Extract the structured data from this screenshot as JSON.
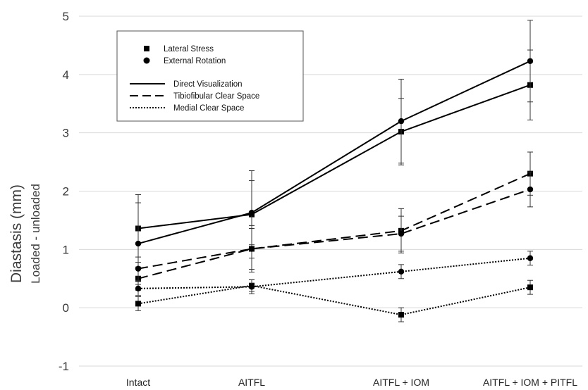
{
  "chart_data": {
    "type": "line",
    "ylabel": "Diastasis (mm)",
    "ylabel_sub": "Loaded - unloaded",
    "xlabel": "",
    "ylim": [
      -1,
      5
    ],
    "yticks": [
      -1,
      0,
      1,
      2,
      3,
      4,
      5
    ],
    "categories": [
      "Intact",
      "AITFL",
      "AITFL + IOM",
      "AITFL + IOM + PITFL"
    ],
    "grid": "horizontal",
    "legend": {
      "placement": "top-left",
      "markers": [
        {
          "label": "Lateral Stress",
          "marker": "square"
        },
        {
          "label": "External Rotation",
          "marker": "circle"
        }
      ],
      "lines": [
        {
          "label": "Direct Visualization",
          "style": "solid"
        },
        {
          "label": "Tibiofibular Clear Space",
          "style": "dashed"
        },
        {
          "label": "Medial Clear Space",
          "style": "dotted"
        }
      ]
    },
    "series": [
      {
        "method": "Direct Visualization",
        "load": "Lateral Stress",
        "style": "solid",
        "marker": "square",
        "values": [
          1.36,
          1.6,
          3.02,
          3.82
        ],
        "errors": [
          0.58,
          0.75,
          0.57,
          0.6
        ]
      },
      {
        "method": "Direct Visualization",
        "load": "External Rotation",
        "style": "solid",
        "marker": "circle",
        "values": [
          1.1,
          1.63,
          3.2,
          4.23
        ],
        "errors": [
          0.7,
          0.55,
          0.72,
          0.7
        ]
      },
      {
        "method": "Tibiofibular Clear Space",
        "load": "Lateral Stress",
        "style": "dashed",
        "marker": "square",
        "values": [
          0.5,
          1.01,
          1.32,
          2.3
        ],
        "errors": [
          0.2,
          0.4,
          0.38,
          0.37
        ]
      },
      {
        "method": "Tibiofibular Clear Space",
        "load": "External Rotation",
        "style": "dashed",
        "marker": "circle",
        "values": [
          0.67,
          1.01,
          1.27,
          2.03
        ],
        "errors": [
          0.2,
          0.35,
          0.3,
          0.3
        ]
      },
      {
        "method": "Medial Clear Space",
        "load": "Lateral Stress",
        "style": "dotted",
        "marker": "square",
        "values": [
          0.07,
          0.38,
          -0.12,
          0.35
        ],
        "errors": [
          0.12,
          0.1,
          0.12,
          0.12
        ]
      },
      {
        "method": "Medial Clear Space",
        "load": "External Rotation",
        "style": "dotted",
        "marker": "circle",
        "values": [
          0.33,
          0.36,
          0.62,
          0.85
        ],
        "errors": [
          0.12,
          0.12,
          0.12,
          0.12
        ]
      }
    ]
  }
}
